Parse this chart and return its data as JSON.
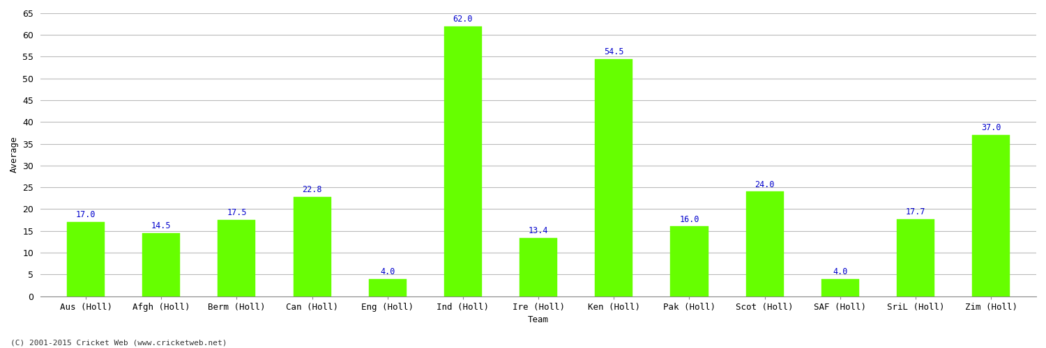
{
  "categories": [
    "Aus (Holl)",
    "Afgh (Holl)",
    "Berm (Holl)",
    "Can (Holl)",
    "Eng (Holl)",
    "Ind (Holl)",
    "Ire (Holl)",
    "Ken (Holl)",
    "Pak (Holl)",
    "Scot (Holl)",
    "SAF (Holl)",
    "SriL (Holl)",
    "Zim (Holl)"
  ],
  "values": [
    17.0,
    14.5,
    17.5,
    22.8,
    4.0,
    62.0,
    13.4,
    54.5,
    16.0,
    24.0,
    4.0,
    17.7,
    37.0
  ],
  "bar_color": "#66ff00",
  "bar_edge_color": "#66ff00",
  "label_color": "#0000cc",
  "xlabel": "Team",
  "ylabel": "Average",
  "ylim": [
    0,
    65
  ],
  "yticks": [
    0,
    5,
    10,
    15,
    20,
    25,
    30,
    35,
    40,
    45,
    50,
    55,
    60,
    65
  ],
  "grid_color": "#bbbbbb",
  "background_color": "#ffffff",
  "plot_background": "#ffffff",
  "footer": "(C) 2001-2015 Cricket Web (www.cricketweb.net)",
  "label_fontsize": 8.5,
  "axis_label_fontsize": 9,
  "tick_fontsize": 9,
  "title_fontsize": 11
}
